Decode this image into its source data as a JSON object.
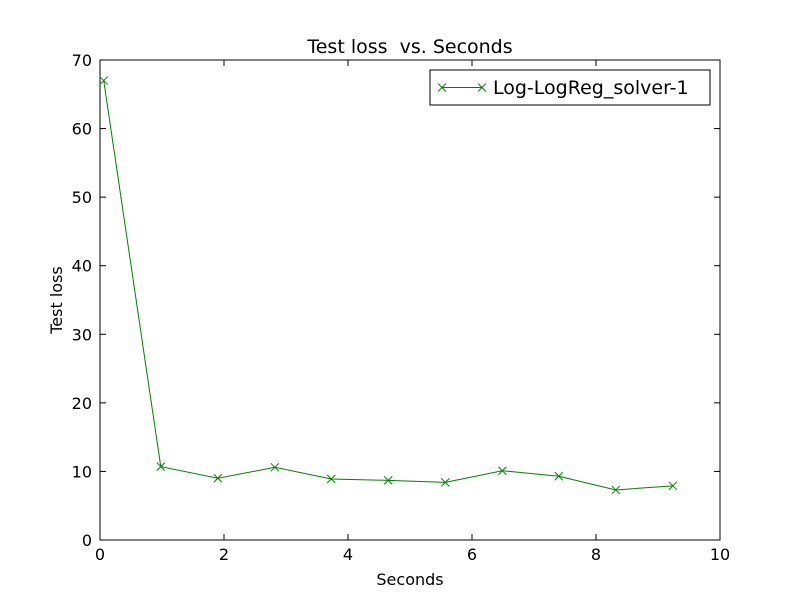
{
  "chart_data": {
    "type": "line",
    "title": "Test loss  vs. Seconds",
    "xlabel": "Seconds",
    "ylabel": "Test loss",
    "xlim": [
      0,
      10
    ],
    "ylim": [
      0,
      70
    ],
    "xticks": [
      "0",
      "2",
      "4",
      "6",
      "8",
      "10"
    ],
    "yticks": [
      "0",
      "10",
      "20",
      "30",
      "40",
      "50",
      "60",
      "70"
    ],
    "grid": false,
    "legend_position": "top-right",
    "series": [
      {
        "name": "Log-LogReg_solver-1",
        "color": "#008000",
        "marker": "x",
        "x": [
          0.06,
          0.98,
          1.9,
          2.82,
          3.73,
          4.65,
          5.57,
          6.49,
          7.4,
          8.32,
          9.24
        ],
        "y": [
          67,
          10.7,
          9.0,
          10.6,
          8.9,
          8.7,
          8.4,
          10.1,
          9.3,
          7.3,
          7.9
        ]
      }
    ]
  }
}
